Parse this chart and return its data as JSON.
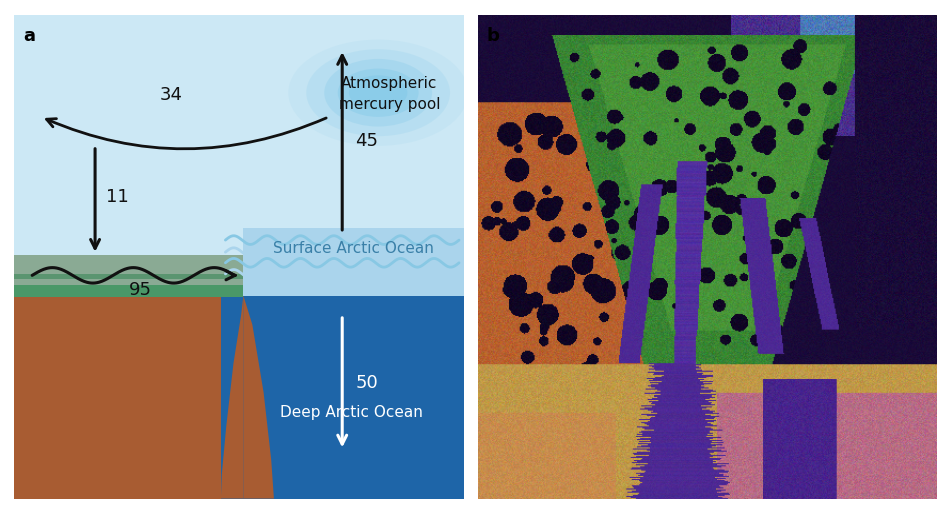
{
  "fig_width": 9.46,
  "fig_height": 5.14,
  "bg_color": "#ffffff",
  "sky_color": "#cce8f5",
  "surface_ocean_light": "#aad4ec",
  "surface_ocean_dark": "#2068b0",
  "deep_ocean_color": "#1a5ca0",
  "ice_gray_color": "#8aaa94",
  "ice_green_color": "#4a9868",
  "ground_color": "#a85c32",
  "atm_pool_color": "#80c8e8",
  "wave_light": "#88c8e4",
  "wave_mid": "#60b0d8",
  "arrow_color": "#111111",
  "white_color": "#ffffff",
  "text_dark": "#111111",
  "text_ocean": "#3a80a8",
  "number_fs": 13,
  "label_fs": 11,
  "panel_fs": 13,
  "panel_a_label": "a",
  "panel_b_label": "b",
  "atm_pool_label": "Atmospheric\nmercury pool",
  "surface_ocean_label": "Surface Arctic Ocean",
  "deep_ocean_label": "Deep Arctic Ocean"
}
